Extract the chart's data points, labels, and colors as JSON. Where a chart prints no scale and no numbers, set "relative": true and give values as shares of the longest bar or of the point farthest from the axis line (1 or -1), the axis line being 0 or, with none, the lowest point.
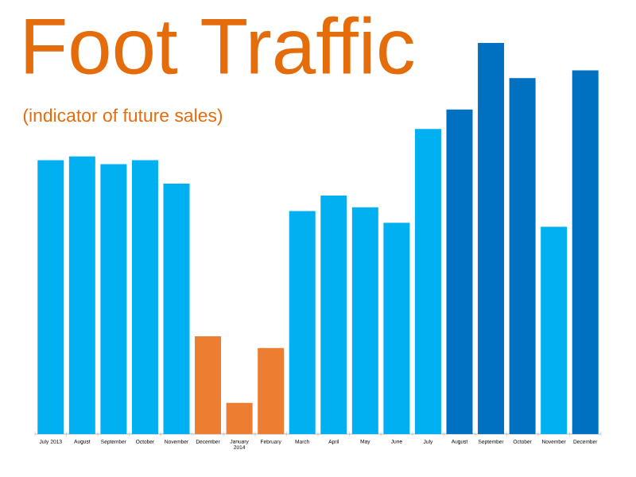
{
  "chart_data": {
    "type": "bar",
    "title": "Foot Traffic",
    "subtitle": "(indicator of future sales)",
    "relative": true,
    "categories": [
      "July 2013",
      "August",
      "September",
      "October",
      "November",
      "December",
      "January 2014",
      "February",
      "March",
      "April",
      "May",
      "June",
      "July",
      "August",
      "September",
      "October",
      "November",
      "December"
    ],
    "values": [
      0.7,
      0.71,
      0.69,
      0.7,
      0.64,
      0.25,
      0.08,
      0.22,
      0.57,
      0.61,
      0.58,
      0.54,
      0.78,
      0.83,
      1,
      0.91,
      0.53,
      0.93
    ],
    "colors": [
      "#00b0f0",
      "#00b0f0",
      "#00b0f0",
      "#00b0f0",
      "#00b0f0",
      "#ed7d31",
      "#ed7d31",
      "#ed7d31",
      "#00b0f0",
      "#00b0f0",
      "#00b0f0",
      "#00b0f0",
      "#00b0f0",
      "#0070c0",
      "#0070c0",
      "#0070c0",
      "#00b0f0",
      "#0070c0"
    ]
  }
}
